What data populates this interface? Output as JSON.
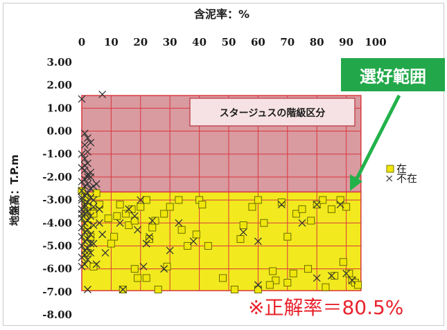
{
  "chart_data": {
    "type": "scatter",
    "x_axis_title": "含泥率：%",
    "y_axis_title": "地盤高：T.P.m",
    "x_ticks": [
      0,
      10,
      20,
      30,
      40,
      50,
      60,
      70,
      80,
      90,
      100
    ],
    "x_tick_labels": [
      "0",
      "10",
      "20",
      "30",
      "40",
      "50",
      "60",
      "70",
      "80",
      "90",
      "100"
    ],
    "y_ticks": [
      3,
      2,
      1,
      0,
      -1,
      -2,
      -3,
      -4,
      -5,
      -6,
      -7,
      -8
    ],
    "y_tick_labels": [
      "3.00",
      "2.00",
      "1.00",
      "0.00",
      "-1.00",
      "-2.00",
      "-3.00",
      "-4.00",
      "-5.00",
      "-6.00",
      "-7.00",
      "-8.00"
    ],
    "xlim": [
      0,
      100
    ],
    "ylim": [
      -8,
      3
    ],
    "grid": true,
    "regions": [
      {
        "name": "upper",
        "x": [
          0,
          95
        ],
        "y": [
          -2.65,
          1.55
        ],
        "color": "#d99aa0"
      },
      {
        "name": "lower",
        "x": [
          0,
          95
        ],
        "y": [
          -6.95,
          -2.65
        ],
        "color": "#f2ea1e"
      }
    ],
    "region_label": "スタージュスの階級区分",
    "series": [
      {
        "name": "在",
        "marker": "square",
        "color": "#f0e60c",
        "points": [
          [
            0,
            -2.6
          ],
          [
            1,
            -2.9
          ],
          [
            2,
            -3.3
          ],
          [
            3,
            -3.5
          ],
          [
            1,
            -3.8
          ],
          [
            2,
            -4.1
          ],
          [
            4,
            -3.6
          ],
          [
            5,
            -2.7
          ],
          [
            6,
            -3.2
          ],
          [
            3,
            -4.6
          ],
          [
            2,
            -5.3
          ],
          [
            4,
            -5.9
          ],
          [
            9,
            -3.8
          ],
          [
            11,
            -4.6
          ],
          [
            10,
            -4.9
          ],
          [
            13,
            -3.2
          ],
          [
            15,
            -3.6
          ],
          [
            16,
            -4.1
          ],
          [
            17,
            -3.4
          ],
          [
            18,
            -3.9
          ],
          [
            20,
            -3.3
          ],
          [
            22,
            -3.0
          ],
          [
            23,
            -4.7
          ],
          [
            24,
            -4.2
          ],
          [
            25,
            -3.9
          ],
          [
            28,
            -3.6
          ],
          [
            30,
            -3.3
          ],
          [
            33,
            -3.0
          ],
          [
            34,
            -4.3
          ],
          [
            36,
            -5.0
          ],
          [
            39,
            -4.5
          ],
          [
            40,
            -3.0
          ],
          [
            41,
            -3.2
          ],
          [
            43,
            -5.0
          ],
          [
            29,
            -5.9
          ],
          [
            18,
            -6.0
          ],
          [
            14,
            -6.9
          ],
          [
            22,
            -6.4
          ],
          [
            48,
            -6.4
          ],
          [
            54,
            -4.7
          ],
          [
            55,
            -4.1
          ],
          [
            58,
            -3.3
          ],
          [
            60,
            -3.0
          ],
          [
            62,
            -4.0
          ],
          [
            65,
            -6.1
          ],
          [
            66,
            -6.5
          ],
          [
            68,
            -3.1
          ],
          [
            70,
            -4.6
          ],
          [
            73,
            -3.6
          ],
          [
            75,
            -3.4
          ],
          [
            77,
            -6.0
          ],
          [
            78,
            -3.9
          ],
          [
            80,
            -3.2
          ],
          [
            82,
            -3.0
          ],
          [
            85,
            -3.4
          ],
          [
            86,
            -6.3
          ],
          [
            88,
            -3.0
          ],
          [
            89,
            -5.7
          ],
          [
            90,
            -3.3
          ],
          [
            91,
            -6.2
          ],
          [
            92,
            -6.5
          ],
          [
            93,
            -6.6
          ],
          [
            94,
            -6.7
          ],
          [
            60,
            -6.9
          ],
          [
            64,
            -6.7
          ],
          [
            70,
            -6.6
          ],
          [
            83,
            -6.8
          ],
          [
            72,
            -6.2
          ],
          [
            12,
            -3.7
          ],
          [
            19,
            -6.4
          ],
          [
            26,
            -6.9
          ],
          [
            52,
            -6.9
          ]
        ]
      },
      {
        "name": "不在",
        "marker": "x",
        "color": "#333333",
        "points": [
          [
            0,
            1.4
          ],
          [
            7,
            1.6
          ],
          [
            1,
            -0.1
          ],
          [
            2,
            -0.3
          ],
          [
            3,
            -0.5
          ],
          [
            1,
            -0.6
          ],
          [
            2,
            -0.9
          ],
          [
            0,
            -1.0
          ],
          [
            1,
            -1.2
          ],
          [
            2,
            -1.4
          ],
          [
            0,
            -1.6
          ],
          [
            1,
            -1.7
          ],
          [
            2,
            -1.9
          ],
          [
            3,
            -2.0
          ],
          [
            1,
            -2.1
          ],
          [
            0,
            -2.2
          ],
          [
            2,
            -2.3
          ],
          [
            1,
            -2.4
          ],
          [
            3,
            -2.5
          ],
          [
            0,
            -2.6
          ],
          [
            2,
            -2.7
          ],
          [
            1,
            -2.8
          ],
          [
            3,
            -2.9
          ],
          [
            0,
            -3.0
          ],
          [
            2,
            -3.1
          ],
          [
            1,
            -3.2
          ],
          [
            4,
            -3.3
          ],
          [
            0,
            -3.4
          ],
          [
            2,
            -3.5
          ],
          [
            1,
            -3.6
          ],
          [
            3,
            -3.7
          ],
          [
            0,
            -3.8
          ],
          [
            2,
            -3.9
          ],
          [
            1,
            -4.0
          ],
          [
            4,
            -4.1
          ],
          [
            0,
            -4.2
          ],
          [
            2,
            -4.3
          ],
          [
            1,
            -4.4
          ],
          [
            3,
            -4.5
          ],
          [
            0,
            -4.6
          ],
          [
            2,
            -4.7
          ],
          [
            1,
            -4.8
          ],
          [
            4,
            -4.9
          ],
          [
            0,
            -5.0
          ],
          [
            2,
            -5.1
          ],
          [
            1,
            -5.2
          ],
          [
            3,
            -5.3
          ],
          [
            0,
            -5.5
          ],
          [
            2,
            -5.6
          ],
          [
            1,
            -5.8
          ],
          [
            0,
            -5.9
          ],
          [
            5,
            -2.3
          ],
          [
            6,
            -3.4
          ],
          [
            7,
            -4.5
          ],
          [
            8,
            -5.3
          ],
          [
            5,
            -5.8
          ],
          [
            4,
            -2.4
          ],
          [
            6,
            -4.0
          ],
          [
            13,
            -4.0
          ],
          [
            14,
            -6.9
          ],
          [
            16,
            -3.4
          ],
          [
            18,
            -3.7
          ],
          [
            19,
            -4.3
          ],
          [
            20,
            -3.0
          ],
          [
            21,
            -5.9
          ],
          [
            22,
            -4.9
          ],
          [
            23,
            -4.6
          ],
          [
            24,
            -3.9
          ],
          [
            28,
            -6.0
          ],
          [
            30,
            -5.2
          ],
          [
            33,
            -4.0
          ],
          [
            38,
            -4.8
          ],
          [
            55,
            -4.4
          ],
          [
            60,
            -4.8
          ],
          [
            60,
            -6.7
          ],
          [
            68,
            -3.2
          ],
          [
            75,
            -4.0
          ],
          [
            80,
            -3.2
          ],
          [
            80,
            -6.4
          ],
          [
            85,
            -6.3
          ],
          [
            88,
            -3.2
          ],
          [
            90,
            -6.2
          ],
          [
            92,
            -6.5
          ],
          [
            2,
            -6.9
          ],
          [
            1,
            -5.4
          ],
          [
            3,
            -4.9
          ],
          [
            0,
            -3.6
          ],
          [
            2,
            -2.0
          ],
          [
            1,
            -1.5
          ],
          [
            0,
            -2.9
          ],
          [
            4,
            -3.0
          ],
          [
            3,
            -1.8
          ],
          [
            1,
            -3.3
          ]
        ]
      }
    ],
    "legend": {
      "position": "right",
      "items": [
        {
          "label": "在",
          "marker": "square",
          "color": "#f0e60c"
        },
        {
          "label": "不在",
          "marker": "x",
          "color": "#333333"
        }
      ]
    }
  },
  "annotations": {
    "callout": "選好範囲",
    "accuracy": "※正解率＝80.5%"
  },
  "colors": {
    "grid": "#d9363e",
    "upper_region": "#d99aa0",
    "lower_region": "#f2ea1e",
    "callout_bg": "#22a84a",
    "arrow": "#22b24a",
    "accuracy_text": "#e8222b"
  }
}
